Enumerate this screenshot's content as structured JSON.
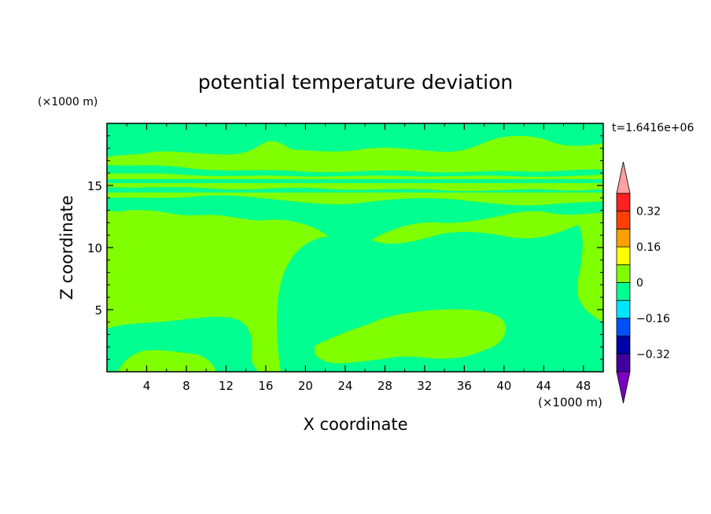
{
  "chart_data": {
    "type": "heatmap",
    "title": "potential temperature deviation",
    "xlabel": "X coordinate",
    "ylabel": "Z coordinate",
    "x_unit": "(×1000 m)",
    "z_unit": "(×1000 m)",
    "time_label": "t=1.6416e+06",
    "xlim": [
      0,
      50
    ],
    "ylim": [
      0,
      20
    ],
    "x_ticks": [
      "4",
      "8",
      "12",
      "16",
      "20",
      "24",
      "28",
      "32",
      "36",
      "40",
      "44",
      "48"
    ],
    "y_ticks": [
      "5",
      "10",
      "15"
    ],
    "colorbar": {
      "levels": [
        -0.4,
        -0.32,
        -0.24,
        -0.16,
        -0.08,
        0,
        0.08,
        0.16,
        0.24,
        0.32,
        0.4
      ],
      "labels": [
        "0.32",
        "0.16",
        "0",
        "-0.16",
        "-0.32"
      ],
      "colors": [
        "#7b00c0",
        "#4000a0",
        "#0000a8",
        "#0050ff",
        "#00e6ff",
        "#00ff90",
        "#80ff00",
        "#ffff00",
        "#ffa000",
        "#ff4000",
        "#ff2020",
        "#ffa0a0"
      ],
      "extend": "both"
    },
    "regions": [
      {
        "range": "0 to 0.08",
        "color": "#80ff00",
        "role": "background"
      },
      {
        "range": "-0.08 to 0",
        "color": "#00ff90",
        "role": "cool anomalies"
      }
    ]
  }
}
